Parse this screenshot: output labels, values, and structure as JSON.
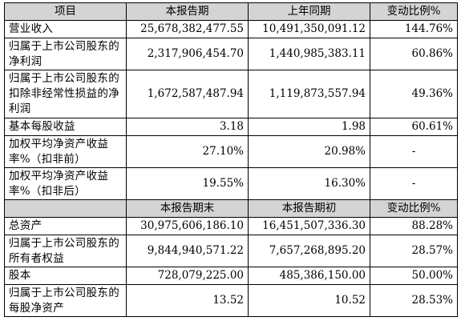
{
  "table1": {
    "headers": [
      "项目",
      "本报告期",
      "上年同期",
      "变动比例%"
    ],
    "rows": [
      {
        "label": "营业收入",
        "current": "25,678,382,477.55",
        "prior": "10,491,350,091.12",
        "change": "144.76%"
      },
      {
        "label": "归属于上市公司股东的净利润",
        "current": "2,317,906,454.70",
        "prior": "1,440,985,383.11",
        "change": "60.86%"
      },
      {
        "label": "归属于上市公司股东的扣除非经常性损益的净利润",
        "current": "1,672,587,487.94",
        "prior": "1,119,873,557.94",
        "change": "49.36%"
      },
      {
        "label": "基本每股收益",
        "current": "3.18",
        "prior": "1.98",
        "change": "60.61%"
      },
      {
        "label": "加权平均净资产收益率%（扣非前）",
        "current": "27.10%",
        "prior": "20.98%",
        "change": "-"
      },
      {
        "label": "加权平均净资产收益率%（扣非后）",
        "current": "19.55%",
        "prior": "16.30%",
        "change": "-"
      }
    ]
  },
  "table2": {
    "headers": [
      "",
      "本报告期末",
      "本报告期初",
      "变动比例%"
    ],
    "rows": [
      {
        "label": "总资产",
        "current": "30,975,606,186.10",
        "prior": "16,451,507,336.30",
        "change": "88.28%"
      },
      {
        "label": "归属于上市公司股东的所有者权益",
        "current": "9,844,940,571.22",
        "prior": "7,657,268,895.20",
        "change": "28.57%"
      },
      {
        "label": "股本",
        "current": "728,079,225.00",
        "prior": "485,386,150.00",
        "change": "50.00%"
      },
      {
        "label": "归属于上市公司股东的每股净资产",
        "current": "13.52",
        "prior": "10.52",
        "change": "28.53%"
      }
    ]
  }
}
